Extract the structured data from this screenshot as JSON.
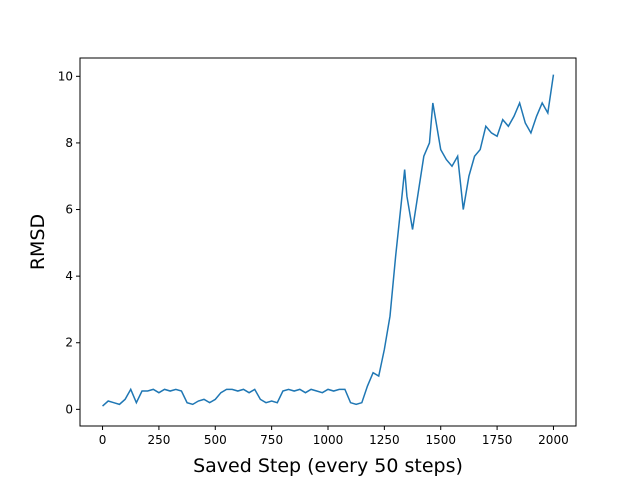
{
  "chart_data": {
    "type": "line",
    "x_label": "Saved Step (every 50 steps)",
    "y_label": "RMSD",
    "x": [
      0,
      25,
      50,
      75,
      100,
      125,
      150,
      175,
      200,
      225,
      250,
      275,
      300,
      325,
      350,
      375,
      400,
      425,
      450,
      475,
      500,
      525,
      550,
      575,
      600,
      625,
      650,
      675,
      700,
      725,
      750,
      775,
      800,
      825,
      850,
      875,
      900,
      925,
      950,
      975,
      1000,
      1025,
      1050,
      1075,
      1100,
      1125,
      1150,
      1175,
      1200,
      1225,
      1250,
      1275,
      1300,
      1325,
      1340,
      1350,
      1375,
      1400,
      1425,
      1450,
      1465,
      1475,
      1500,
      1525,
      1550,
      1575,
      1600,
      1625,
      1650,
      1675,
      1700,
      1725,
      1750,
      1775,
      1800,
      1825,
      1850,
      1875,
      1900,
      1925,
      1950,
      1975,
      2000
    ],
    "series": [
      {
        "name": "RMSD",
        "color": "#1f77b4",
        "values": [
          0.1,
          0.25,
          0.2,
          0.15,
          0.3,
          0.6,
          0.2,
          0.55,
          0.55,
          0.6,
          0.5,
          0.6,
          0.55,
          0.6,
          0.55,
          0.2,
          0.15,
          0.25,
          0.3,
          0.2,
          0.3,
          0.5,
          0.6,
          0.6,
          0.55,
          0.6,
          0.5,
          0.6,
          0.3,
          0.2,
          0.25,
          0.2,
          0.55,
          0.6,
          0.55,
          0.6,
          0.5,
          0.6,
          0.55,
          0.5,
          0.6,
          0.55,
          0.6,
          0.6,
          0.2,
          0.15,
          0.2,
          0.7,
          1.1,
          1.0,
          1.8,
          2.8,
          4.6,
          6.2,
          7.2,
          6.4,
          5.4,
          6.5,
          7.6,
          8.0,
          9.2,
          8.8,
          7.8,
          7.5,
          7.3,
          7.6,
          6.0,
          7.0,
          7.6,
          7.8,
          8.5,
          8.3,
          8.2,
          8.7,
          8.5,
          8.8,
          9.2,
          8.6,
          8.3,
          8.8,
          9.2,
          8.9,
          10.05
        ]
      }
    ],
    "xlim": [
      -100,
      2100
    ],
    "ylim": [
      -0.5,
      10.55
    ],
    "xticks": [
      0,
      250,
      500,
      750,
      1000,
      1250,
      1500,
      1750,
      2000
    ],
    "yticks": [
      0,
      2,
      4,
      6,
      8,
      10
    ]
  }
}
